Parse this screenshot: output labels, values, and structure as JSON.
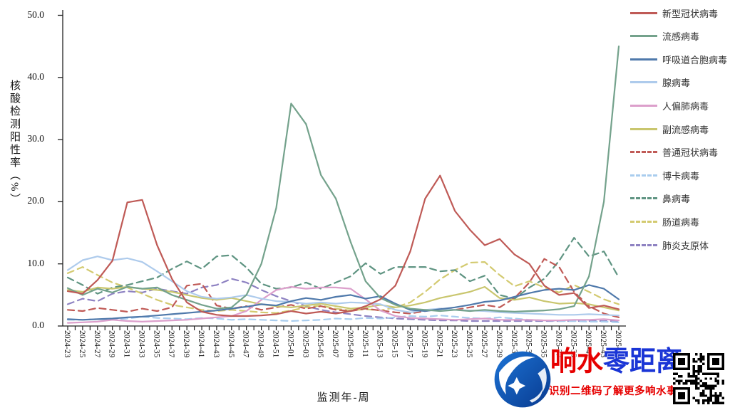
{
  "y_axis": {
    "title": "核酸检测阳性率（%）",
    "tick_labels": [
      "0.0",
      "10.0",
      "20.0",
      "30.0",
      "40.0",
      "50.0"
    ]
  },
  "x_axis": {
    "title": "监测年-周"
  },
  "watermark": {
    "brand_red": "响水",
    "brand_blue": "零距离",
    "subtitle": "识别二维码了解更多响水事",
    "brand_red_color": "#e60000",
    "brand_blue_color": "#1a35d6",
    "logo_blue": "#0d50b4",
    "qr_icon": "qr-code"
  },
  "chart_data": {
    "type": "line",
    "title": "",
    "xlabel": "监测年-周",
    "ylabel": "核酸检测阳性率（%）",
    "ylim": [
      0,
      50
    ],
    "grid": false,
    "legend_position": "right",
    "categories": [
      "2024-23",
      "2024-25",
      "2024-27",
      "2024-29",
      "2024-31",
      "2024-33",
      "2024-35",
      "2024-37",
      "2024-39",
      "2024-41",
      "2024-43",
      "2024-45",
      "2024-47",
      "2024-49",
      "2024-51",
      "2025-01",
      "2025-03",
      "2025-05",
      "2025-07",
      "2025-09",
      "2025-11",
      "2025-13",
      "2025-15",
      "2025-17",
      "2025-19",
      "2025-21",
      "2025-23",
      "2025-25",
      "2025-27",
      "2025-29",
      "2025-31",
      "2025-33",
      "2025-35",
      "2025-37",
      "2025-39",
      "2025-41",
      "2025-43",
      "2025-45"
    ],
    "series": [
      {
        "name": "新型冠状病毒",
        "color": "#bf5a56",
        "dash": false,
        "values": [
          5.6,
          5.2,
          7.4,
          10.5,
          19.9,
          20.3,
          13.0,
          7.6,
          3.8,
          2.3,
          1.8,
          1.6,
          1.6,
          1.7,
          1.9,
          2.4,
          2.0,
          2.3,
          2.0,
          2.4,
          3.2,
          4.3,
          6.5,
          12.0,
          20.5,
          24.2,
          18.5,
          15.5,
          13.0,
          14.0,
          11.5,
          10.0,
          6.5,
          5.0,
          5.3,
          2.9,
          3.3,
          2.7
        ]
      },
      {
        "name": "流感病毒",
        "color": "#74a28c",
        "dash": false,
        "values": [
          6.1,
          5.0,
          6.0,
          5.4,
          6.3,
          6.0,
          6.2,
          5.0,
          4.2,
          3.4,
          2.8,
          3.0,
          5.0,
          10.0,
          19.0,
          35.8,
          32.5,
          24.3,
          20.5,
          13.5,
          7.2,
          4.5,
          3.4,
          2.8,
          2.6,
          2.4,
          2.6,
          2.4,
          2.6,
          2.4,
          2.3,
          2.4,
          2.5,
          2.7,
          3.2,
          8.0,
          20.0,
          45.0
        ]
      },
      {
        "name": "呼吸道合胞病毒",
        "color": "#4f79ab",
        "dash": false,
        "values": [
          1.1,
          1.0,
          1.1,
          1.2,
          1.4,
          1.5,
          1.7,
          1.9,
          2.1,
          2.3,
          2.5,
          2.8,
          3.1,
          3.5,
          3.3,
          4.0,
          4.5,
          4.2,
          4.7,
          5.0,
          4.4,
          4.8,
          3.6,
          2.6,
          2.4,
          2.7,
          3.0,
          3.4,
          3.9,
          4.1,
          4.7,
          5.3,
          5.8,
          6.0,
          5.8,
          6.6,
          6.0,
          4.3
        ]
      },
      {
        "name": "腺病毒",
        "color": "#aecbec",
        "dash": false,
        "values": [
          9.0,
          10.6,
          11.2,
          10.6,
          10.9,
          10.3,
          8.8,
          7.2,
          5.6,
          4.7,
          4.4,
          4.6,
          5.0,
          4.4,
          4.0,
          3.9,
          3.6,
          3.8,
          3.6,
          3.8,
          3.7,
          3.5,
          2.6,
          2.2,
          2.6,
          2.8,
          2.6,
          2.5,
          2.4,
          2.2,
          2.1,
          2.0,
          1.9,
          1.8,
          1.8,
          1.9,
          1.8,
          1.7
        ]
      },
      {
        "name": "人偏肺病毒",
        "color": "#dc9fcb",
        "dash": false,
        "values": [
          0.5,
          0.6,
          0.7,
          1.0,
          0.8,
          0.7,
          0.8,
          0.9,
          1.0,
          1.2,
          1.4,
          1.6,
          2.4,
          4.2,
          5.8,
          6.3,
          6.0,
          6.2,
          6.2,
          6.0,
          4.3,
          2.5,
          1.6,
          1.3,
          1.2,
          1.1,
          1.0,
          1.1,
          1.2,
          1.0,
          1.0,
          1.0,
          0.9,
          0.9,
          1.0,
          1.0,
          1.1,
          0.9
        ]
      },
      {
        "name": "副流感病毒",
        "color": "#c9c66e",
        "dash": false,
        "values": [
          5.8,
          5.5,
          6.2,
          6.0,
          6.3,
          6.0,
          5.8,
          5.5,
          5.0,
          4.5,
          4.2,
          4.5,
          4.0,
          3.5,
          3.2,
          3.0,
          3.3,
          3.6,
          3.2,
          2.8,
          3.0,
          3.4,
          3.0,
          3.3,
          3.8,
          4.5,
          5.0,
          5.5,
          6.3,
          4.5,
          4.2,
          4.6,
          4.0,
          3.6,
          3.7,
          3.5,
          3.0,
          2.5
        ]
      },
      {
        "name": "普通冠状病毒",
        "color": "#c05a56",
        "dash": true,
        "values": [
          2.6,
          2.4,
          2.9,
          2.6,
          2.3,
          2.8,
          2.4,
          3.0,
          6.5,
          6.8,
          3.3,
          2.8,
          3.2,
          2.6,
          3.0,
          3.4,
          2.8,
          3.2,
          2.6,
          2.4,
          2.8,
          2.5,
          2.2,
          2.0,
          2.4,
          2.8,
          2.6,
          3.0,
          3.4,
          3.0,
          4.5,
          7.0,
          10.8,
          9.5,
          5.5,
          3.2,
          2.0,
          1.4
        ]
      },
      {
        "name": "博卡病毒",
        "color": "#a9cdee",
        "dash": true,
        "values": [
          1.0,
          1.0,
          1.1,
          1.0,
          1.2,
          1.5,
          1.3,
          1.2,
          1.1,
          1.3,
          1.2,
          1.0,
          1.1,
          1.0,
          0.9,
          0.8,
          0.9,
          1.0,
          1.2,
          1.1,
          1.3,
          1.2,
          1.4,
          1.6,
          1.5,
          1.7,
          1.5,
          1.3,
          1.2,
          1.4,
          1.2,
          1.0,
          0.9,
          0.8,
          0.8,
          0.7,
          0.7,
          0.6
        ]
      },
      {
        "name": "鼻病毒",
        "color": "#5f9482",
        "dash": true,
        "values": [
          7.8,
          6.6,
          5.2,
          6.2,
          6.6,
          7.2,
          7.8,
          9.2,
          10.4,
          9.2,
          11.2,
          11.4,
          9.4,
          6.8,
          6.0,
          6.2,
          7.0,
          6.0,
          7.0,
          8.0,
          10.1,
          8.4,
          9.5,
          9.5,
          9.5,
          8.8,
          9.0,
          7.2,
          8.1,
          5.0,
          4.4,
          6.2,
          7.6,
          10.5,
          14.2,
          11.2,
          12.0,
          7.8
        ]
      },
      {
        "name": "肠道病毒",
        "color": "#d3ca70",
        "dash": true,
        "values": [
          8.5,
          9.5,
          8.2,
          7.0,
          6.2,
          5.2,
          4.2,
          3.4,
          3.0,
          2.6,
          2.4,
          2.6,
          2.4,
          2.2,
          2.1,
          2.5,
          3.0,
          3.3,
          2.8,
          2.5,
          2.7,
          2.5,
          3.0,
          3.8,
          5.5,
          7.5,
          9.0,
          10.2,
          10.3,
          8.2,
          6.4,
          7.2,
          6.2,
          5.4,
          6.6,
          5.5,
          4.3,
          3.5
        ]
      },
      {
        "name": "肺炎支原体",
        "color": "#8e82c2",
        "dash": true,
        "values": [
          3.5,
          4.4,
          4.0,
          5.2,
          5.6,
          5.4,
          6.0,
          5.6,
          5.2,
          6.2,
          6.6,
          7.6,
          7.0,
          5.8,
          4.8,
          4.0,
          3.2,
          2.6,
          2.2,
          1.9,
          1.6,
          1.4,
          1.2,
          1.1,
          1.0,
          0.9,
          0.9,
          0.8,
          0.8,
          0.8,
          0.8,
          0.8,
          0.8,
          0.8,
          0.8,
          0.8,
          0.8,
          0.8
        ]
      }
    ]
  }
}
